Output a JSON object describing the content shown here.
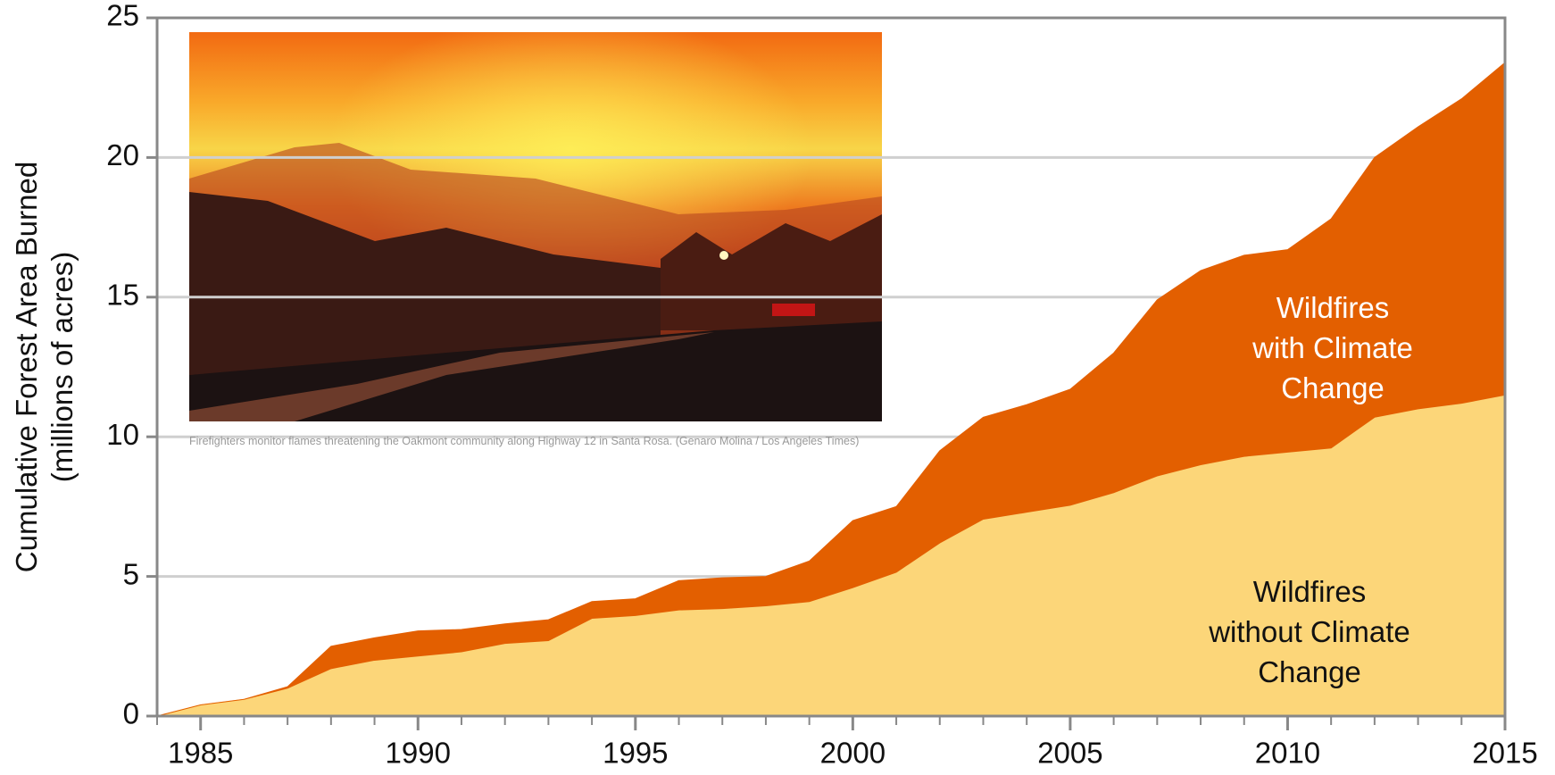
{
  "chart_data": {
    "type": "stacked-area",
    "ylabel": "Cumulative Forest Area Burned\n(millions of acres)",
    "caption": "Firefighters monitor flames threatening the Oakmont community along Highway 12 in Santa Rosa. (Genaro Molina / Los Angeles Times)",
    "x": [
      1984,
      1985,
      1986,
      1987,
      1988,
      1989,
      1990,
      1991,
      1992,
      1993,
      1994,
      1995,
      1996,
      1997,
      1998,
      1999,
      2000,
      2001,
      2002,
      2003,
      2004,
      2005,
      2006,
      2007,
      2008,
      2009,
      2010,
      2011,
      2012,
      2013,
      2014,
      2015
    ],
    "series": [
      {
        "name": "Wildfires\nwithout Climate Change",
        "color": "#fcd679",
        "values": [
          0,
          0.4,
          0.6,
          1.0,
          1.7,
          2.0,
          2.15,
          2.3,
          2.6,
          2.7,
          3.5,
          3.6,
          3.8,
          3.85,
          3.95,
          4.1,
          4.6,
          5.15,
          6.2,
          7.05,
          7.3,
          7.55,
          8.0,
          8.6,
          9.0,
          9.3,
          9.45,
          9.6,
          10.7,
          11.0,
          11.2,
          11.5
        ]
      },
      {
        "name": "Wildfires\nwith Climate Change",
        "color": "#e35f00",
        "values": [
          0,
          0,
          0,
          0.05,
          0.8,
          0.8,
          0.9,
          0.8,
          0.7,
          0.75,
          0.6,
          0.6,
          1.05,
          1.1,
          1.05,
          1.45,
          2.4,
          2.35,
          3.3,
          3.65,
          3.85,
          4.15,
          5.0,
          6.3,
          6.95,
          7.2,
          7.25,
          8.2,
          9.3,
          10.1,
          10.9,
          11.9
        ]
      }
    ],
    "xlim": [
      1984,
      2015
    ],
    "xticks": [
      1985,
      1990,
      1995,
      2000,
      2005,
      2010,
      2015
    ],
    "xminorticks": [
      1984,
      1985,
      1986,
      1987,
      1988,
      1989,
      1990,
      1991,
      1992,
      1993,
      1994,
      1995,
      1996,
      1997,
      1998,
      1999,
      2000,
      2001,
      2002,
      2003,
      2004,
      2005,
      2006,
      2007,
      2008,
      2009,
      2010,
      2011,
      2012,
      2013,
      2014,
      2015
    ],
    "ylim": [
      0,
      25
    ],
    "yticks": [
      0,
      5,
      10,
      15,
      20,
      25
    ],
    "grid": true
  }
}
